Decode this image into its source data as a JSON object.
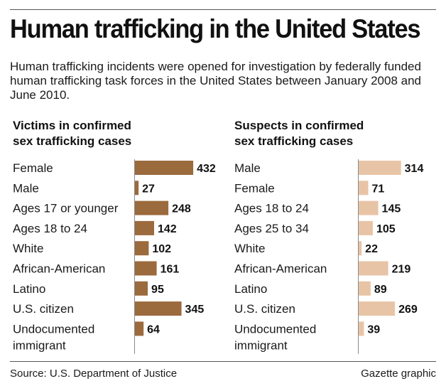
{
  "title": "Human trafficking in the United States",
  "subtitle": "Human trafficking incidents were opened for investigation by federally funded human trafficking task forces in the United States between January 2008 and June 2010.",
  "source": "Source: U.S. Department of Justice",
  "credit": "Gazette graphic",
  "chart_data": [
    {
      "type": "bar",
      "title_lines": [
        "Victims in confirmed",
        "sex trafficking cases"
      ],
      "categories": [
        "Female",
        "Male",
        "Ages 17 or younger",
        "Ages 18 to 24",
        "White",
        "African-American",
        "Latino",
        "U.S. citizen",
        "Undocumented immigrant"
      ],
      "values": [
        432,
        27,
        248,
        142,
        102,
        161,
        95,
        345,
        64
      ],
      "color": "#9b6a3d",
      "orientation": "horizontal",
      "grid": false,
      "legend": "none"
    },
    {
      "type": "bar",
      "title_lines": [
        "Suspects in confirmed",
        "sex trafficking cases"
      ],
      "categories": [
        "Male",
        "Female",
        "Ages 18 to 24",
        "Ages 25 to 34",
        "White",
        "African-American",
        "Latino",
        "U.S. citizen",
        "Undocumented immigrant"
      ],
      "values": [
        314,
        71,
        145,
        105,
        22,
        219,
        89,
        269,
        39
      ],
      "color": "#e8c4a6",
      "orientation": "horizontal",
      "grid": false,
      "legend": "none"
    }
  ]
}
